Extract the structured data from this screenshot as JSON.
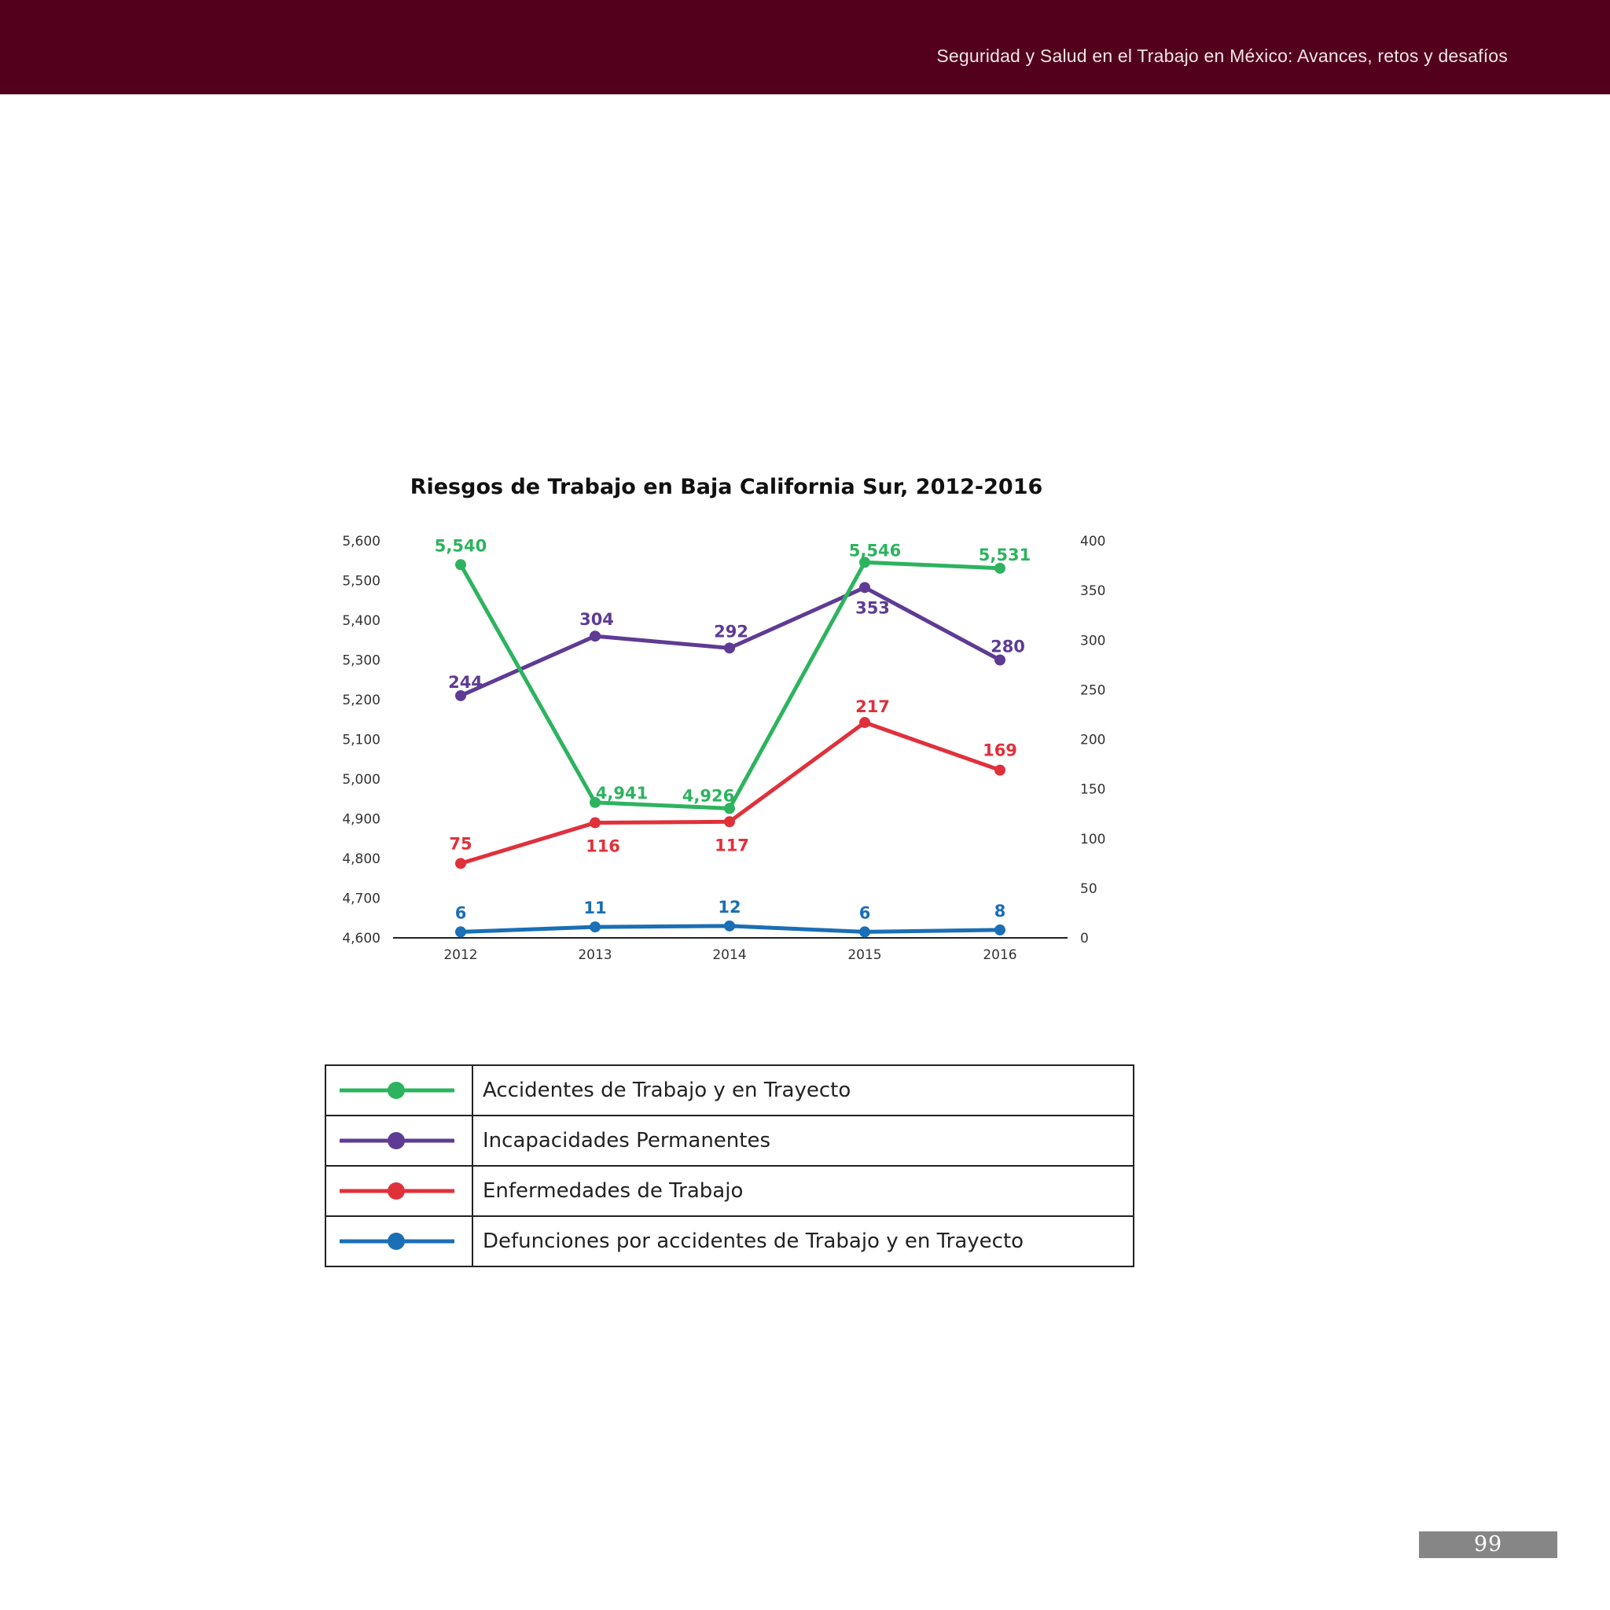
{
  "header": {
    "title": "Seguridad y Salud en el Trabajo en México: Avances, retos y desafíos",
    "bar_color": "#52001c"
  },
  "page_number": "99",
  "chart_data": {
    "type": "line",
    "title": "Riesgos de Trabajo en Baja California Sur, 2012-2016",
    "categories": [
      "2012",
      "2013",
      "2014",
      "2015",
      "2016"
    ],
    "y_left": {
      "range": [
        4600,
        5600
      ],
      "ticks": [
        4600,
        4700,
        4800,
        4900,
        5000,
        5100,
        5200,
        5300,
        5400,
        5500,
        5600
      ],
      "tick_labels": [
        "4,600",
        "4,700",
        "4,800",
        "4,900",
        "5,000",
        "5,100",
        "5,200",
        "5,300",
        "5,400",
        "5,500",
        "5,600"
      ]
    },
    "y_right": {
      "range": [
        0,
        400
      ],
      "ticks": [
        0,
        50,
        100,
        150,
        200,
        250,
        300,
        350,
        400
      ],
      "tick_labels": [
        "0",
        "50",
        "100",
        "150",
        "200",
        "250",
        "300",
        "350",
        "400"
      ]
    },
    "grid": false,
    "legend_position": "bottom",
    "series": [
      {
        "name": "Accidentes de Trabajo y en Trayecto",
        "axis": "left",
        "color": "#2db35f",
        "values": [
          5540,
          4941,
          4926,
          5546,
          5531
        ],
        "labels": [
          "5,540",
          "4,941",
          "4,926",
          "5,546",
          "5,531"
        ]
      },
      {
        "name": "Incapacidades Permanentes",
        "axis": "right",
        "color": "#5e3b94",
        "values": [
          244,
          304,
          292,
          353,
          280
        ],
        "labels": [
          "244",
          "304",
          "292",
          "353",
          "280"
        ]
      },
      {
        "name": "Enfermedades de Trabajo",
        "axis": "right",
        "color": "#e0313b",
        "values": [
          75,
          116,
          117,
          217,
          169
        ],
        "labels": [
          "75",
          "116",
          "117",
          "217",
          "169"
        ]
      },
      {
        "name": "Defunciones por accidentes de Trabajo y en Trayecto",
        "axis": "right",
        "color": "#1a6fb5",
        "values": [
          6,
          11,
          12,
          6,
          8
        ],
        "labels": [
          "6",
          "11",
          "12",
          "6",
          "8"
        ]
      }
    ]
  }
}
